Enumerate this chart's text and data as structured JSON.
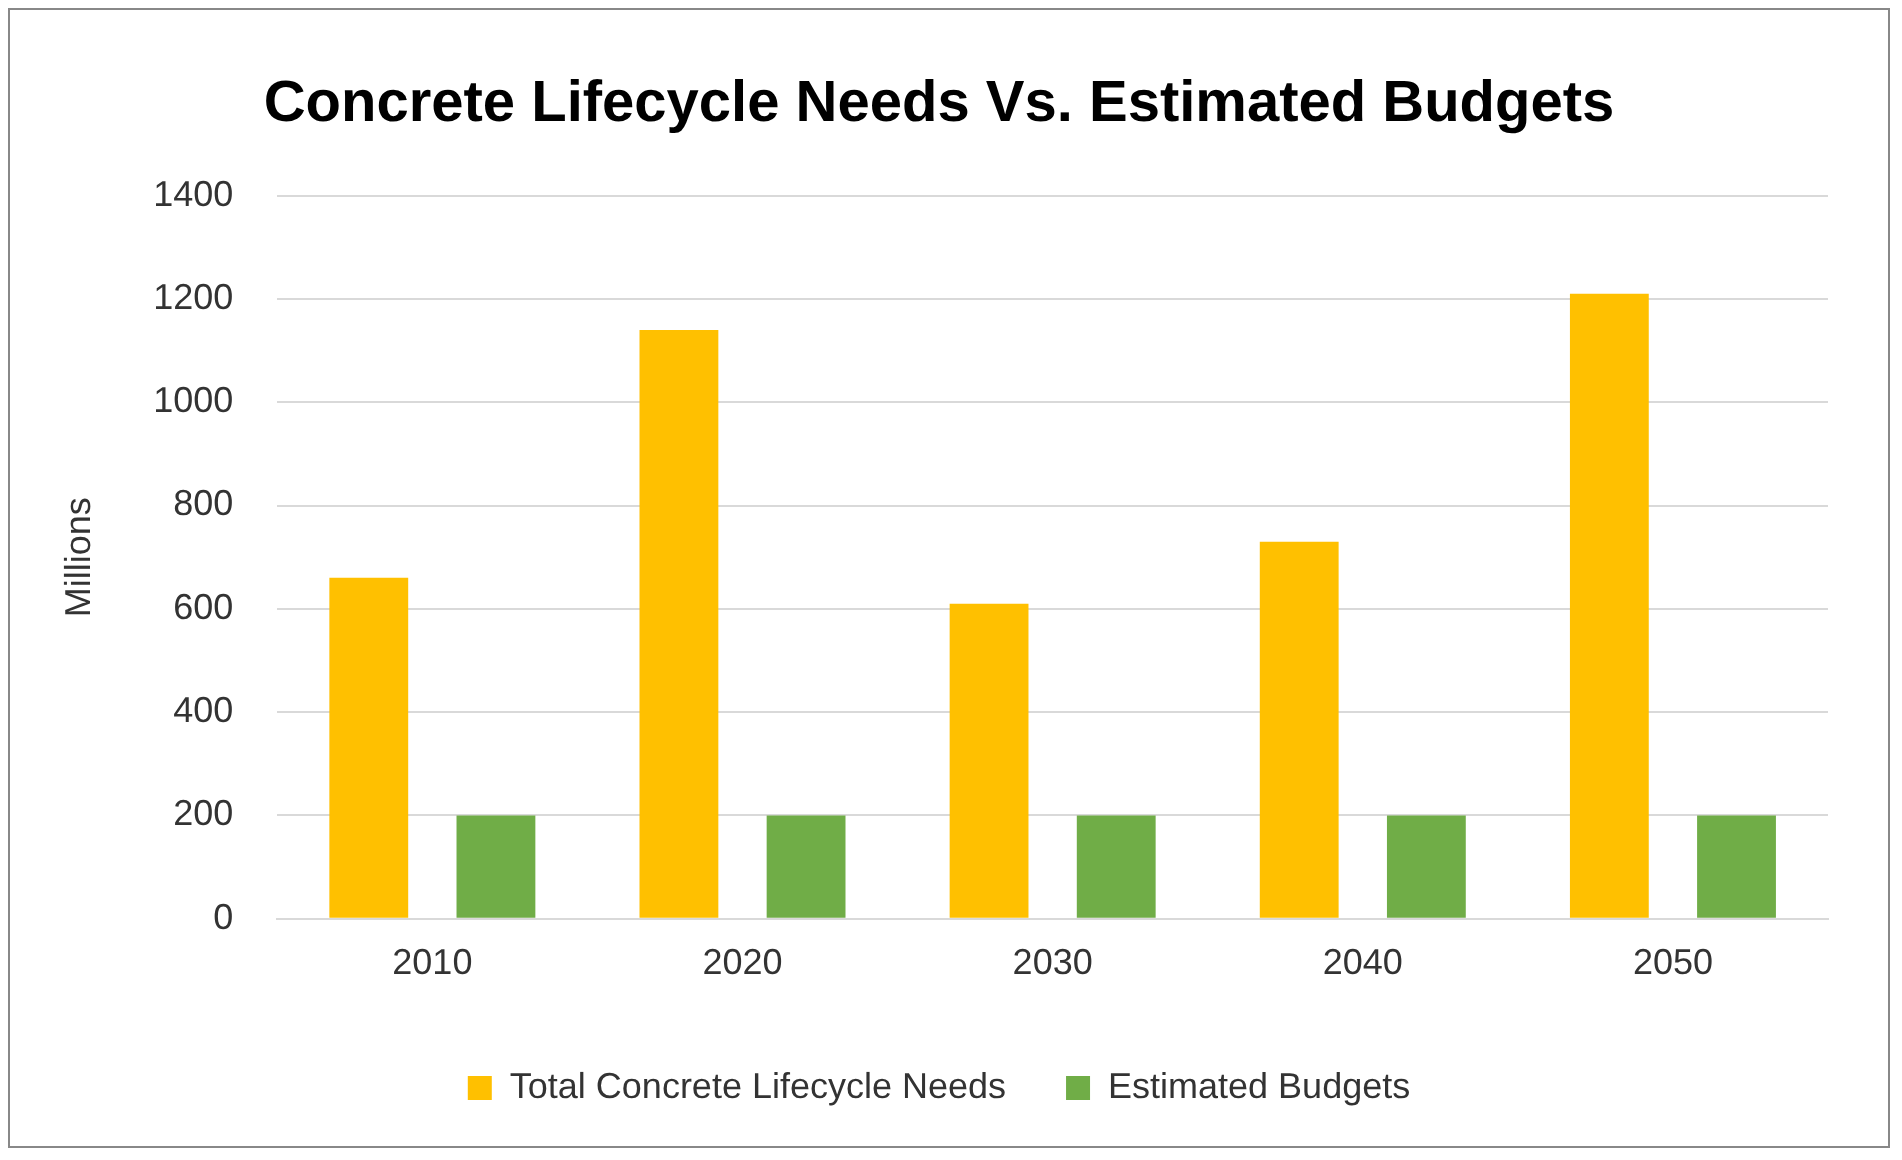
{
  "chart_data": {
    "type": "bar",
    "title": "Concrete Lifecycle Needs Vs. Estimated Budgets",
    "ylabel": "Millions",
    "categories": [
      "2010",
      "2020",
      "2030",
      "2040",
      "2050"
    ],
    "series": [
      {
        "name": "Total Concrete Lifecycle Needs",
        "color": "#ffc000",
        "values": [
          660,
          1140,
          610,
          730,
          1210
        ]
      },
      {
        "name": "Estimated Budgets",
        "color": "#70ad47",
        "values": [
          200,
          200,
          200,
          200,
          200
        ]
      }
    ],
    "ylim": [
      0,
      1400
    ],
    "yticks": [
      0,
      200,
      400,
      600,
      800,
      1000,
      1200,
      1400
    ],
    "grid": "y",
    "legend": "bottom"
  }
}
